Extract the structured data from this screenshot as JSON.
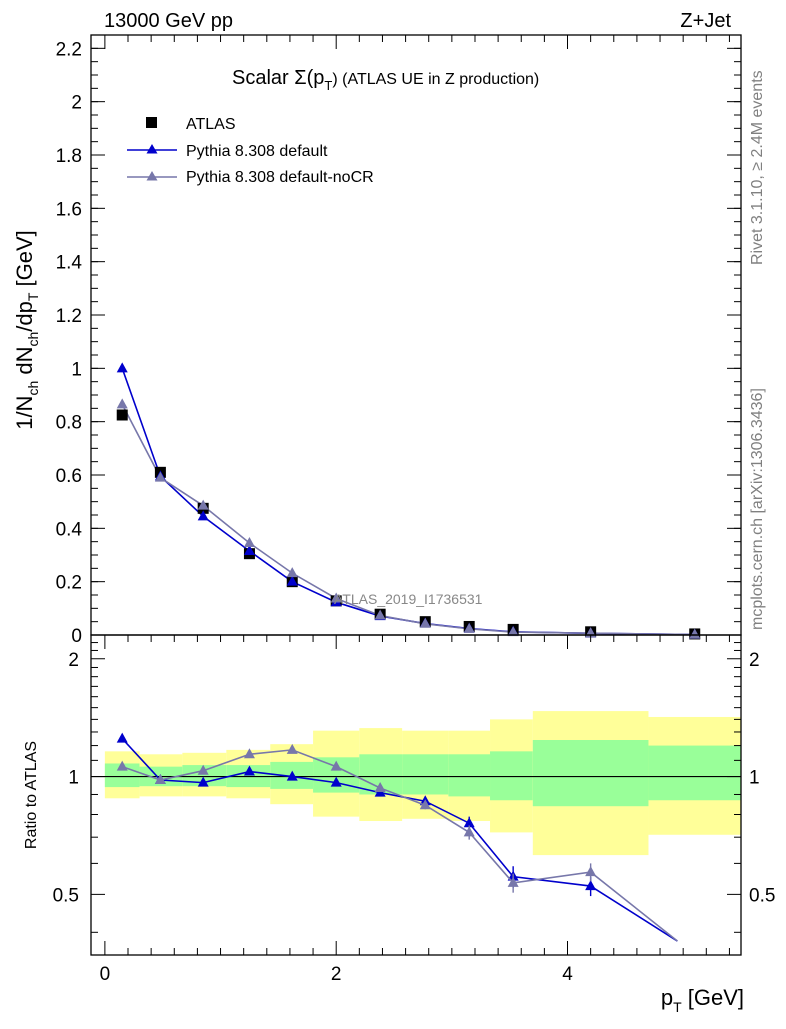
{
  "header": {
    "left": "13000 GeV pp",
    "right": "Z+Jet"
  },
  "side_labels": {
    "rivet": "Rivet 3.1.10, ≥ 2.4M events",
    "mcplots": "mcplots.cern.ch [arXiv:1306.3436]"
  },
  "chart_data": [
    {
      "type": "line",
      "title_main": "Scalar Σ(p",
      "title_sub": "T",
      "title_tail": ") (ATLAS UE in Z production)",
      "watermark": "ATLAS_2019_I1736531",
      "ylabel": "1/N_ch dN_ch/dp_T [GeV]",
      "ylim": [
        0,
        2.25
      ],
      "yticks": [
        "0",
        "0.2",
        "0.4",
        "0.6",
        "0.8",
        "1",
        "1.2",
        "1.4",
        "1.6",
        "1.8",
        "2",
        "2.2"
      ],
      "xlim": [
        -0.12,
        5.5
      ],
      "legend": {
        "placement": "top-left"
      },
      "series": [
        {
          "name": "ATLAS",
          "color": "#000000",
          "marker": "square",
          "x": [
            0.15,
            0.48,
            0.85,
            1.25,
            1.62,
            2.0,
            2.38,
            2.77,
            3.15,
            3.53,
            4.2,
            5.1
          ],
          "y": [
            0.825,
            0.61,
            0.475,
            0.305,
            0.2,
            0.128,
            0.078,
            0.05,
            0.032,
            0.021,
            0.012,
            0.004
          ]
        },
        {
          "name": "Pythia 8.308 default",
          "color": "#0000cc",
          "marker": "triangle",
          "x": [
            0.15,
            0.48,
            0.85,
            1.25,
            1.62,
            2.0,
            2.38,
            2.77,
            3.15,
            3.53,
            4.2,
            5.1
          ],
          "y": [
            1.0,
            0.595,
            0.445,
            0.315,
            0.2,
            0.123,
            0.071,
            0.043,
            0.024,
            0.012,
            0.0065,
            0.0015
          ]
        },
        {
          "name": "Pythia 8.308 default-noCR",
          "color": "#7777aa",
          "marker": "triangle",
          "x": [
            0.15,
            0.48,
            0.85,
            1.25,
            1.62,
            2.0,
            2.38,
            2.77,
            3.15,
            3.53,
            4.2,
            5.1
          ],
          "y": [
            0.865,
            0.59,
            0.485,
            0.345,
            0.232,
            0.137,
            0.073,
            0.042,
            0.023,
            0.011,
            0.0068,
            0.0015
          ]
        }
      ]
    },
    {
      "type": "line",
      "ylabel": "Ratio to ATLAS",
      "xlabel_main": "p",
      "xlabel_sub": "T",
      "xlabel_tail": " [GeV]",
      "ylim": [
        0.35,
        2.3
      ],
      "yticks": [
        "0.5",
        "1",
        "2"
      ],
      "xticks": [
        "0",
        "2",
        "4"
      ],
      "xlim": [
        -0.12,
        5.5
      ],
      "reference_line": 1,
      "bands": [
        {
          "x": [
            0.0,
            0.3
          ],
          "stat": [
            0.94,
            1.08
          ],
          "total": [
            0.88,
            1.16
          ]
        },
        {
          "x": [
            0.3,
            0.67
          ],
          "stat": [
            0.945,
            1.06
          ],
          "total": [
            0.89,
            1.14
          ]
        },
        {
          "x": [
            0.67,
            1.05
          ],
          "stat": [
            0.945,
            1.07
          ],
          "total": [
            0.89,
            1.15
          ]
        },
        {
          "x": [
            1.05,
            1.43
          ],
          "stat": [
            0.94,
            1.07
          ],
          "total": [
            0.88,
            1.17
          ]
        },
        {
          "x": [
            1.43,
            1.8
          ],
          "stat": [
            0.93,
            1.09
          ],
          "total": [
            0.85,
            1.21
          ]
        },
        {
          "x": [
            1.8,
            2.2
          ],
          "stat": [
            0.91,
            1.12
          ],
          "total": [
            0.79,
            1.31
          ]
        },
        {
          "x": [
            2.2,
            2.57
          ],
          "stat": [
            0.9,
            1.14
          ],
          "total": [
            0.77,
            1.33
          ]
        },
        {
          "x": [
            2.57,
            2.97
          ],
          "stat": [
            0.9,
            1.14
          ],
          "total": [
            0.78,
            1.31
          ]
        },
        {
          "x": [
            2.97,
            3.33
          ],
          "stat": [
            0.89,
            1.14
          ],
          "total": [
            0.77,
            1.31
          ]
        },
        {
          "x": [
            3.33,
            3.7
          ],
          "stat": [
            0.87,
            1.16
          ],
          "total": [
            0.72,
            1.4
          ]
        },
        {
          "x": [
            3.7,
            4.7
          ],
          "stat": [
            0.84,
            1.24
          ],
          "total": [
            0.63,
            1.47
          ]
        },
        {
          "x": [
            4.7,
            5.5
          ],
          "stat": [
            0.87,
            1.2
          ],
          "total": [
            0.71,
            1.42
          ]
        }
      ],
      "series": [
        {
          "name": "Pythia 8.308 default",
          "color": "#0000cc",
          "x": [
            0.15,
            0.48,
            0.85,
            1.25,
            1.62,
            2.0,
            2.38,
            2.77,
            3.15,
            3.53,
            4.2,
            4.95
          ],
          "y": [
            1.25,
            0.98,
            0.965,
            1.03,
            1.0,
            0.965,
            0.91,
            0.865,
            0.76,
            0.555,
            0.525,
            0.38
          ],
          "err": [
            0.01,
            0.01,
            0.01,
            0.01,
            0.01,
            0.01,
            0.01,
            0.02,
            0.03,
            0.035,
            0.03,
            0
          ]
        },
        {
          "name": "Pythia 8.308 default-noCR",
          "color": "#7777aa",
          "x": [
            0.15,
            0.48,
            0.85,
            1.25,
            1.62,
            2.0,
            2.38,
            2.77,
            3.15,
            3.53,
            4.2,
            4.95
          ],
          "y": [
            1.06,
            0.98,
            1.035,
            1.14,
            1.17,
            1.06,
            0.935,
            0.845,
            0.72,
            0.535,
            0.57,
            0.38
          ],
          "err": [
            0.01,
            0.01,
            0.01,
            0.01,
            0.01,
            0.01,
            0.01,
            0.02,
            0.03,
            0.03,
            0.03,
            0
          ]
        }
      ]
    }
  ]
}
